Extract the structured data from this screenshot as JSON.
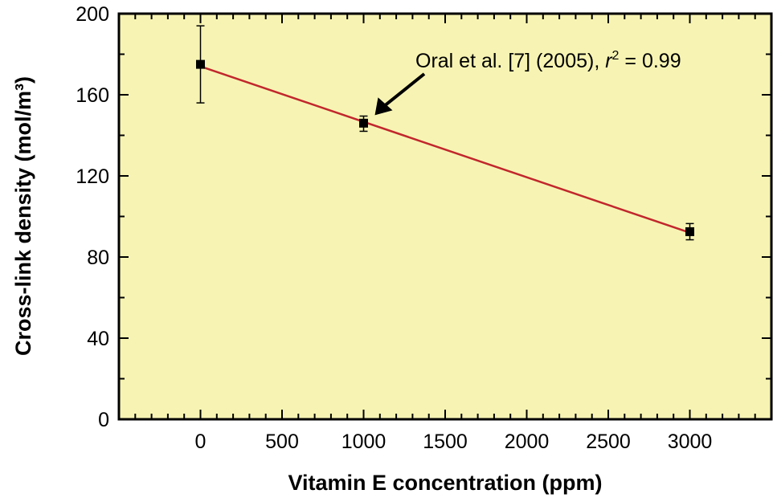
{
  "chart_data": {
    "type": "scatter",
    "title": "",
    "xlabel": "Vitamin E concentration (ppm)",
    "ylabel": "Cross-link density (mol/m³)",
    "xlim": [
      -500,
      3500
    ],
    "ylim": [
      0,
      200
    ],
    "xticks": [
      0,
      500,
      1000,
      1500,
      2000,
      2500,
      3000
    ],
    "yticks": [
      0,
      40,
      80,
      120,
      160,
      200
    ],
    "x_minor_step": 100,
    "y_minor_step": 20,
    "grid": false,
    "series": [
      {
        "name": "Oral et al. [7] (2005)",
        "points": [
          {
            "x": 0,
            "y": 175,
            "err_low": 156,
            "err_high": 194
          },
          {
            "x": 1000,
            "y": 146,
            "err_low": 142,
            "err_high": 149.5
          },
          {
            "x": 3000,
            "y": 92.5,
            "err_low": 88.5,
            "err_high": 96.5
          }
        ],
        "fit": {
          "x": [
            0,
            3000
          ],
          "y": [
            174,
            92
          ],
          "r2": 0.99
        }
      }
    ],
    "annotation": {
      "text_main": "Oral et al. [7] (2005), ",
      "text_r": "r",
      "text_sup": "2",
      "text_tail": " = 0.99",
      "arrow_to": {
        "x": 1000,
        "y": 146
      }
    },
    "colors": {
      "background": "#f7f4b3",
      "fit_line": "#c1272d",
      "marker": "#000000"
    }
  }
}
